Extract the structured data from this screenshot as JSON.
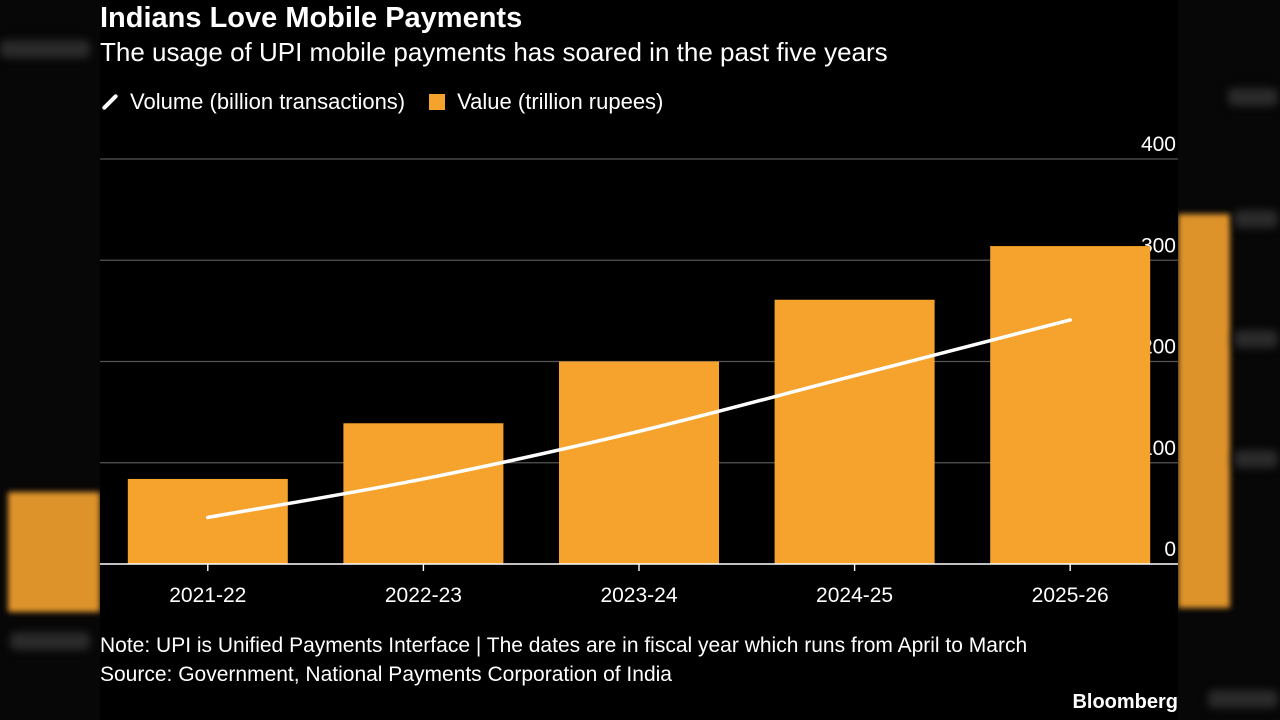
{
  "title": "Indians Love Mobile Payments",
  "subtitle": "The usage of UPI mobile payments has soared in the past five years",
  "legend": {
    "line_label": "Volume (billion transactions)",
    "bar_label": "Value (trillion rupees)"
  },
  "note": "Note: UPI is Unified Payments Interface | The dates are in fiscal year which runs from April to March",
  "source": "Source: Government, National Payments Corporation of India",
  "brand": "Bloomberg",
  "colors": {
    "bar": "#f6a32e",
    "line": "#ffffff",
    "background": "#000000",
    "grid": "#555555"
  },
  "chart_data": {
    "type": "bar",
    "categories": [
      "2021-22",
      "2022-23",
      "2023-24",
      "2024-25",
      "2025-26"
    ],
    "series": [
      {
        "name": "Value (trillion rupees)",
        "type": "bar",
        "values": [
          84,
          139,
          200,
          261,
          314
        ]
      },
      {
        "name": "Volume (billion transactions)",
        "type": "line",
        "values": [
          46,
          84,
          131,
          186,
          241
        ]
      }
    ],
    "yticks": [
      0,
      100,
      200,
      300,
      400
    ],
    "ylim": [
      0,
      400
    ],
    "y_axis_side": "right",
    "grid": true,
    "legend_position": "top-left"
  }
}
